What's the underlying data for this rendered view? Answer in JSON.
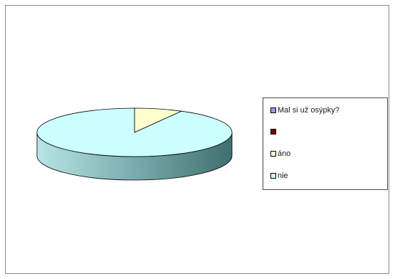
{
  "chart_data": {
    "type": "pie",
    "title": "",
    "legend_title": "Mal si už osýpky?",
    "legend_placement": "right",
    "slices": [
      {
        "label": "",
        "value": 0,
        "color": "#800000"
      },
      {
        "label": "áno",
        "value": 8,
        "color": "#ffffcc"
      },
      {
        "label": "nie",
        "value": 92,
        "color": "#ccffff"
      }
    ],
    "legend_title_color": "#9999ff"
  }
}
